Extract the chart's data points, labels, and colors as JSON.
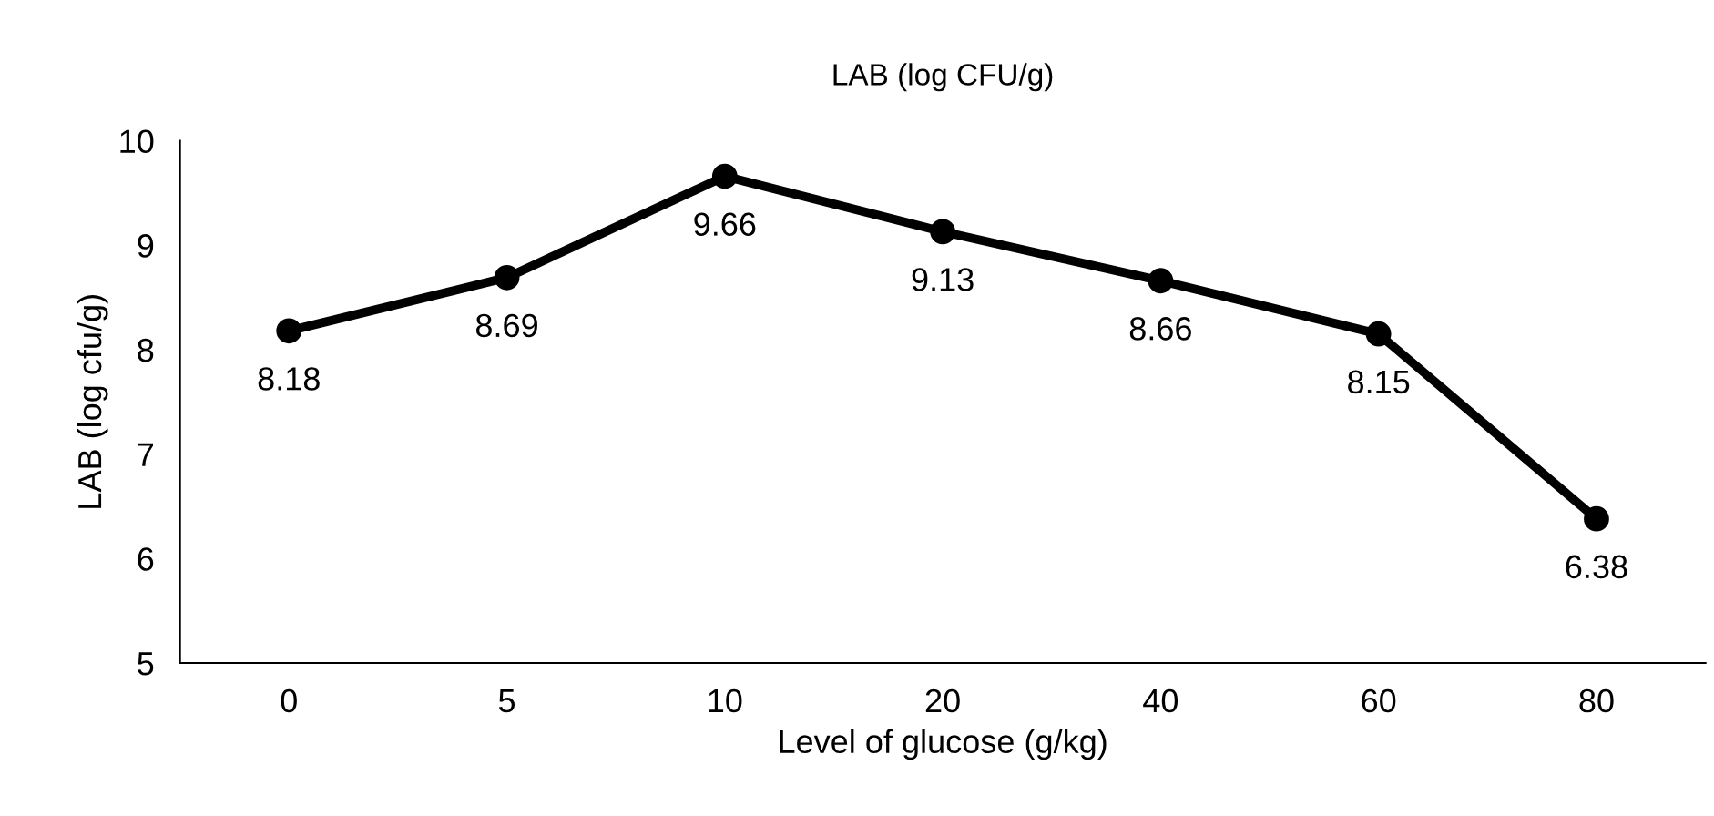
{
  "chart_data": {
    "type": "line",
    "title": "LAB (log CFU/g)",
    "xlabel": "Level of glucose (g/kg)",
    "ylabel": "LAB (log cfu/g)",
    "categories": [
      "0",
      "5",
      "10",
      "20",
      "40",
      "60",
      "80"
    ],
    "series": [
      {
        "color": "#000000",
        "values": [
          8.18,
          8.69,
          9.66,
          9.13,
          8.66,
          8.15,
          6.38
        ]
      }
    ],
    "ylim": [
      5,
      10
    ],
    "yticks": [
      5,
      6,
      7,
      8,
      9,
      10
    ],
    "data_labels": true,
    "marker": "circle",
    "line_style": "solid",
    "grid": false,
    "legend": false
  }
}
